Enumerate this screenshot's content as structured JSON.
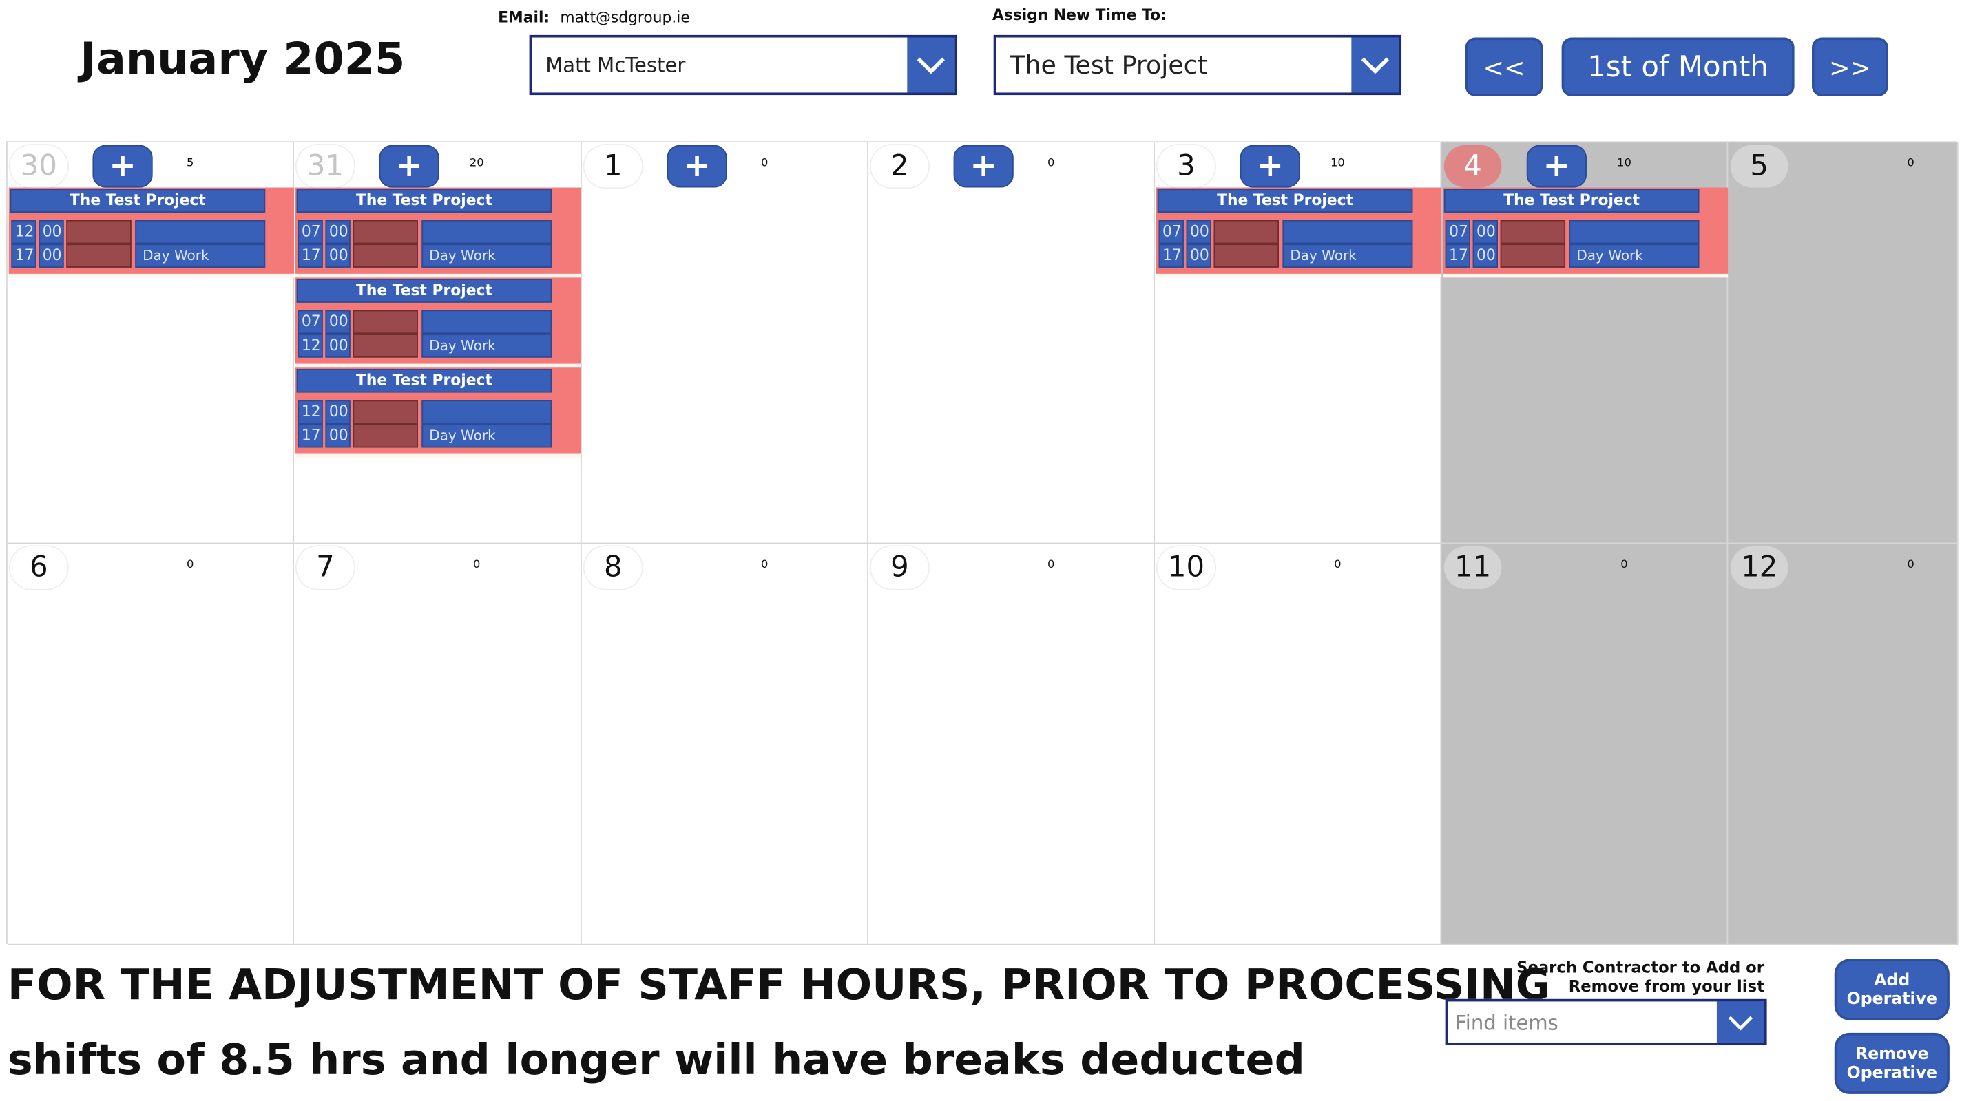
{
  "header": {
    "month_title": "January 2025",
    "email_label": "EMail:",
    "email_value": "matt@sdgroup.ie",
    "user_select_value": "Matt McTester",
    "assign_label": "Assign New Time To:",
    "project_select_value": "The Test Project",
    "prev_label": "<<",
    "first_of_month_label": "1st of Month",
    "next_label": ">>"
  },
  "colors": {
    "accent": "#3860b8",
    "shift_bg": "#f47a7a",
    "break_box": "#9a4a4c",
    "weekend": "#c0c0c0"
  },
  "weeks": [
    [
      {
        "date": "30",
        "muted": true,
        "plus": true,
        "count": "5",
        "shifts": [
          {
            "project": "The Test Project",
            "start_h": "12",
            "start_m": "00",
            "end_h": "17",
            "end_m": "00",
            "type": "Day Work"
          }
        ]
      },
      {
        "date": "31",
        "muted": true,
        "plus": true,
        "count": "20",
        "shifts": [
          {
            "project": "The Test Project",
            "start_h": "07",
            "start_m": "00",
            "end_h": "17",
            "end_m": "00",
            "type": "Day Work"
          },
          {
            "project": "The Test Project",
            "start_h": "07",
            "start_m": "00",
            "end_h": "12",
            "end_m": "00",
            "type": "Day Work"
          },
          {
            "project": "The Test Project",
            "start_h": "12",
            "start_m": "00",
            "end_h": "17",
            "end_m": "00",
            "type": "Day Work"
          }
        ]
      },
      {
        "date": "1",
        "plus": true,
        "count": "0",
        "shifts": []
      },
      {
        "date": "2",
        "plus": true,
        "count": "0",
        "shifts": []
      },
      {
        "date": "3",
        "plus": true,
        "count": "10",
        "shifts": [
          {
            "project": "The Test Project",
            "start_h": "07",
            "start_m": "00",
            "end_h": "17",
            "end_m": "00",
            "type": "Day Work"
          }
        ]
      },
      {
        "date": "4",
        "today": true,
        "gray": true,
        "plus": true,
        "count": "10",
        "shifts": [
          {
            "project": "The Test Project",
            "start_h": "07",
            "start_m": "00",
            "end_h": "17",
            "end_m": "00",
            "type": "Day Work"
          }
        ]
      },
      {
        "date": "5",
        "gray": true,
        "count": "0",
        "shifts": []
      }
    ],
    [
      {
        "date": "6",
        "count": "0",
        "shifts": []
      },
      {
        "date": "7",
        "count": "0",
        "shifts": []
      },
      {
        "date": "8",
        "count": "0",
        "shifts": []
      },
      {
        "date": "9",
        "count": "0",
        "shifts": []
      },
      {
        "date": "10",
        "count": "0",
        "shifts": []
      },
      {
        "date": "11",
        "gray": true,
        "count": "0",
        "shifts": []
      },
      {
        "date": "12",
        "gray": true,
        "count": "0",
        "shifts": []
      }
    ]
  ],
  "footer": {
    "notice_line1": "FOR THE ADJUSTMENT OF STAFF HOURS, PRIOR TO PROCESSING",
    "notice_line2": "shifts of 8.5 hrs and longer will have breaks deducted",
    "search_label_line1": "Search Contractor to Add or",
    "search_label_line2": "Remove from your list",
    "search_placeholder": "Find items",
    "add_operative_label": "Add Operative",
    "remove_operative_label": "Remove Operative"
  }
}
